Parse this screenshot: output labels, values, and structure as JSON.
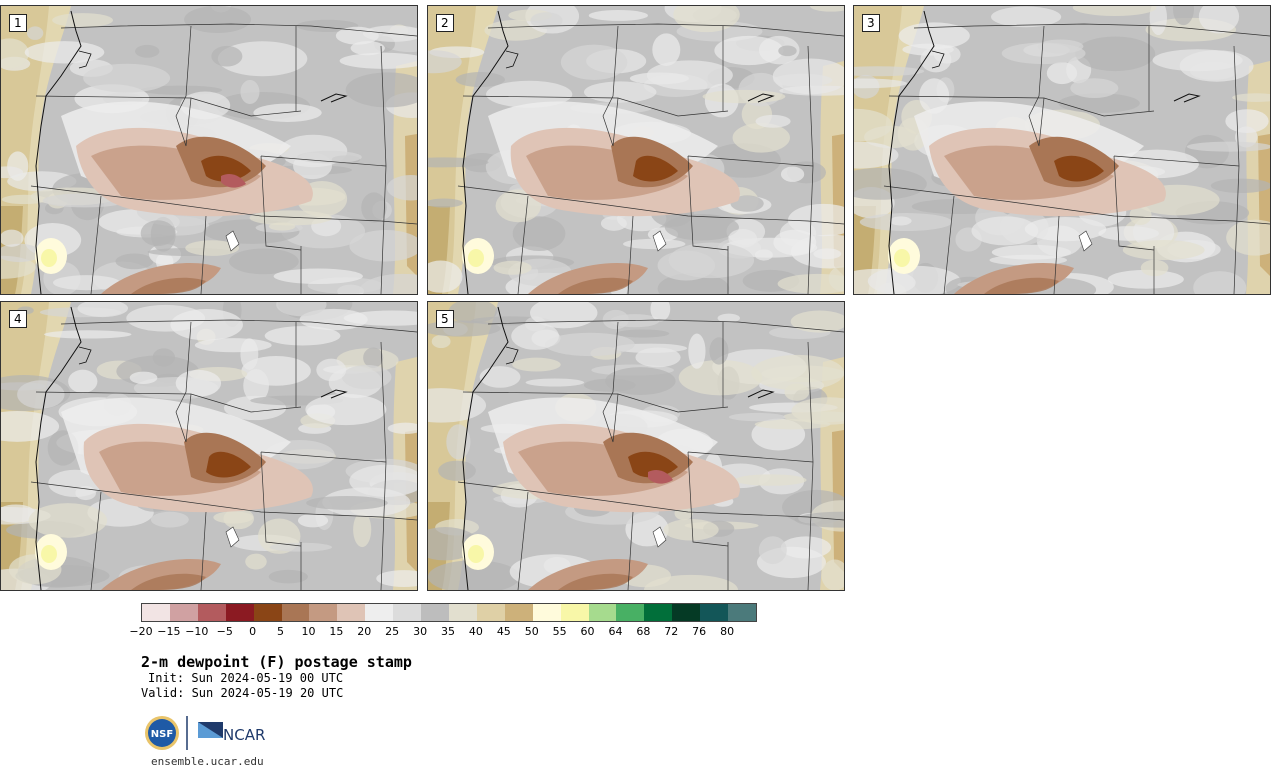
{
  "panels": [
    {
      "label": "1",
      "variant": 1
    },
    {
      "label": "2",
      "variant": 2
    },
    {
      "label": "3",
      "variant": 3
    },
    {
      "label": "4",
      "variant": 4
    },
    {
      "label": "5",
      "variant": 5
    }
  ],
  "colorbar": {
    "colors": [
      "#f2e4e4",
      "#d0a1a2",
      "#b35b5e",
      "#8b1a22",
      "#8a4516",
      "#a97655",
      "#c49a82",
      "#dfc4b6",
      "#eeeeee",
      "#dcdcdc",
      "#bdbdbd",
      "#e2dfcf",
      "#dfd0a6",
      "#cdb17a",
      "#fffbdc",
      "#f8f7a8",
      "#a6db8e",
      "#48b064",
      "#016f3a",
      "#053a25",
      "#135658",
      "#4b7a7b"
    ],
    "ticks": [
      "−20",
      "−15",
      "−10",
      "−5",
      "0",
      "5",
      "10",
      "15",
      "20",
      "25",
      "30",
      "35",
      "40",
      "45",
      "50",
      "55",
      "60",
      "64",
      "68",
      "72",
      "76",
      "80"
    ]
  },
  "title": "2-m dewpoint (F) postage stamp",
  "init": "Init: Sun 2024-05-19 00 UTC",
  "valid": "Valid: Sun 2024-05-19 20 UTC",
  "site": "ensemble.ucar.edu",
  "logos": {
    "nsf": "NSF",
    "ncar": "NCAR"
  }
}
